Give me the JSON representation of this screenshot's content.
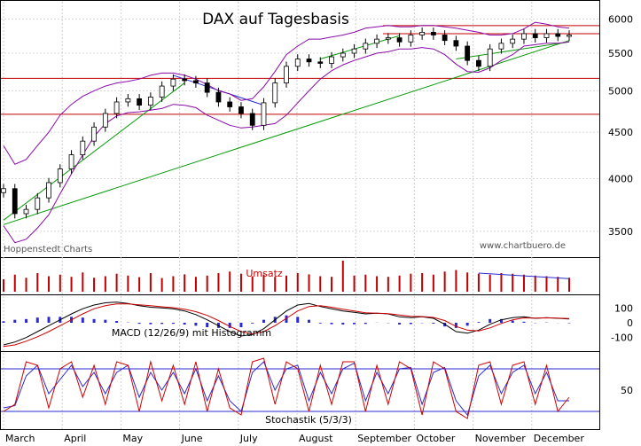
{
  "chart_data": [
    {
      "type": "candlestick",
      "title": "DAX auf Tagesbasis",
      "yscale": "log",
      "ylim": [
        3300,
        6100
      ],
      "yticks": [
        "6000",
        "5500",
        "5000",
        "4500",
        "4000",
        "3500"
      ],
      "ytick_values": [
        6000,
        5500,
        5000,
        4500,
        4000,
        3500
      ],
      "months": [
        "March",
        "April",
        "May",
        "June",
        "July",
        "August",
        "September",
        "October",
        "November",
        "December"
      ],
      "horizontal_lines": [
        5900,
        5780,
        5160,
        4710
      ],
      "annotation_left": "Hoppenstedt Charts",
      "annotation_right": "www.chartbuero.de",
      "series": [
        {
          "name": "DAX",
          "close": [
            3900,
            3660,
            3700,
            3810,
            3960,
            4100,
            4250,
            4400,
            4560,
            4720,
            4860,
            4900,
            4820,
            4920,
            5060,
            5150,
            5130,
            5100,
            4980,
            4860,
            4800,
            4720,
            4580,
            4850,
            5100,
            5320,
            5420,
            5380,
            5360,
            5450,
            5500,
            5560,
            5640,
            5700,
            5720,
            5660,
            5760,
            5800,
            5760,
            5680,
            5600,
            5400,
            5320,
            5560,
            5640,
            5700,
            5780,
            5720,
            5780,
            5740,
            5760
          ]
        }
      ],
      "bollinger_upper": [
        4350,
        4150,
        4200,
        4350,
        4500,
        4700,
        4830,
        4930,
        5000,
        5060,
        5100,
        5120,
        5150,
        5200,
        5230,
        5230,
        5200,
        5150,
        5080,
        5000,
        4960,
        4880,
        4900,
        5050,
        5250,
        5480,
        5600,
        5700,
        5700,
        5730,
        5760,
        5800,
        5860,
        5880,
        5900,
        5880,
        5880,
        5900,
        5900,
        5880,
        5860,
        5830,
        5800,
        5760,
        5760,
        5780,
        5850,
        5950,
        5920,
        5880,
        5860
      ],
      "bollinger_lower": [
        3550,
        3400,
        3430,
        3530,
        3650,
        3850,
        4050,
        4250,
        4450,
        4600,
        4690,
        4730,
        4740,
        4760,
        4780,
        4830,
        4820,
        4790,
        4700,
        4640,
        4580,
        4550,
        4560,
        4580,
        4600,
        4700,
        4850,
        5000,
        5150,
        5260,
        5340,
        5400,
        5450,
        5500,
        5520,
        5560,
        5560,
        5580,
        5560,
        5480,
        5350,
        5250,
        5240,
        5300,
        5400,
        5480,
        5600,
        5620,
        5640,
        5640,
        5660
      ],
      "trendlines": [
        {
          "from": [
            0,
            3560
          ],
          "to": [
            50,
            5680
          ]
        },
        {
          "from": [
            0,
            3600
          ],
          "to": [
            16,
            5100
          ]
        },
        {
          "from": [
            15,
            5200
          ],
          "to": [
            23,
            4820
          ]
        },
        {
          "from": [
            28,
            5420
          ],
          "to": [
            35,
            5750
          ]
        },
        {
          "from": [
            40,
            5420
          ],
          "to": [
            50,
            5660
          ]
        }
      ]
    },
    {
      "type": "bar",
      "title": "Umsatz",
      "values": [
        40,
        55,
        45,
        60,
        50,
        55,
        48,
        62,
        45,
        50,
        58,
        52,
        47,
        60,
        44,
        50,
        56,
        48,
        52,
        60,
        65,
        58,
        50,
        55,
        48,
        52,
        60,
        56,
        50,
        48,
        100,
        52,
        55,
        50,
        48,
        52,
        58,
        60,
        55,
        65,
        70,
        62,
        58,
        55,
        60,
        58,
        55,
        52,
        50,
        48,
        45
      ],
      "trend": [
        60,
        42
      ]
    },
    {
      "type": "line",
      "title": "MACD (12/26/9) mit Histogramm",
      "yticks": [
        "100",
        "0",
        "-100"
      ],
      "ytick_values": [
        100,
        0,
        -100
      ],
      "ylim": [
        -180,
        180
      ],
      "series": [
        {
          "name": "MACD",
          "values": [
            -150,
            -130,
            -100,
            -60,
            -20,
            20,
            60,
            95,
            120,
            135,
            140,
            130,
            115,
            105,
            100,
            95,
            80,
            55,
            20,
            -20,
            -60,
            -90,
            -80,
            -40,
            20,
            80,
            120,
            130,
            110,
            95,
            80,
            70,
            60,
            65,
            60,
            40,
            35,
            40,
            30,
            -10,
            -60,
            -70,
            -50,
            -10,
            20,
            35,
            40,
            30,
            35,
            30,
            25
          ]
        },
        {
          "name": "Signal",
          "values": [
            -160,
            -150,
            -125,
            -95,
            -60,
            -20,
            20,
            60,
            95,
            115,
            128,
            128,
            122,
            115,
            108,
            102,
            92,
            75,
            50,
            15,
            -25,
            -60,
            -75,
            -60,
            -20,
            30,
            80,
            110,
            115,
            105,
            92,
            80,
            68,
            64,
            62,
            52,
            44,
            42,
            36,
            15,
            -25,
            -50,
            -55,
            -35,
            -5,
            20,
            33,
            32,
            33,
            31,
            28
          ]
        },
        {
          "name": "Histogramm",
          "values": [
            10,
            20,
            25,
            35,
            40,
            40,
            40,
            35,
            25,
            20,
            12,
            2,
            -7,
            -10,
            -8,
            -7,
            -12,
            -20,
            -30,
            -35,
            -35,
            -30,
            -5,
            20,
            40,
            50,
            40,
            20,
            -5,
            -10,
            -12,
            -10,
            -8,
            1,
            -2,
            -12,
            -9,
            -2,
            -6,
            -25,
            -35,
            -20,
            5,
            25,
            25,
            15,
            7,
            -2,
            2,
            -1,
            -3
          ]
        }
      ]
    },
    {
      "type": "line",
      "title": "Stochastik (5/3/3)",
      "yticks": [
        "50"
      ],
      "ytick_values": [
        50
      ],
      "ylim": [
        0,
        100
      ],
      "horizontal_lines": [
        80,
        20
      ],
      "series": [
        {
          "name": "%K",
          "values": [
            20,
            30,
            90,
            85,
            25,
            80,
            90,
            40,
            85,
            30,
            90,
            85,
            20,
            90,
            35,
            85,
            30,
            90,
            20,
            80,
            25,
            15,
            90,
            95,
            30,
            90,
            80,
            20,
            85,
            30,
            90,
            90,
            20,
            85,
            30,
            90,
            80,
            15,
            90,
            80,
            20,
            10,
            85,
            90,
            30,
            85,
            90,
            30,
            85,
            20,
            40
          ]
        },
        {
          "name": "%D",
          "values": [
            25,
            28,
            70,
            85,
            45,
            65,
            85,
            55,
            75,
            45,
            75,
            85,
            40,
            75,
            50,
            75,
            45,
            80,
            35,
            70,
            35,
            20,
            75,
            90,
            50,
            80,
            85,
            35,
            75,
            45,
            80,
            88,
            35,
            75,
            45,
            80,
            82,
            30,
            75,
            82,
            35,
            15,
            70,
            85,
            45,
            75,
            85,
            45,
            75,
            35,
            35
          ]
        }
      ]
    }
  ]
}
